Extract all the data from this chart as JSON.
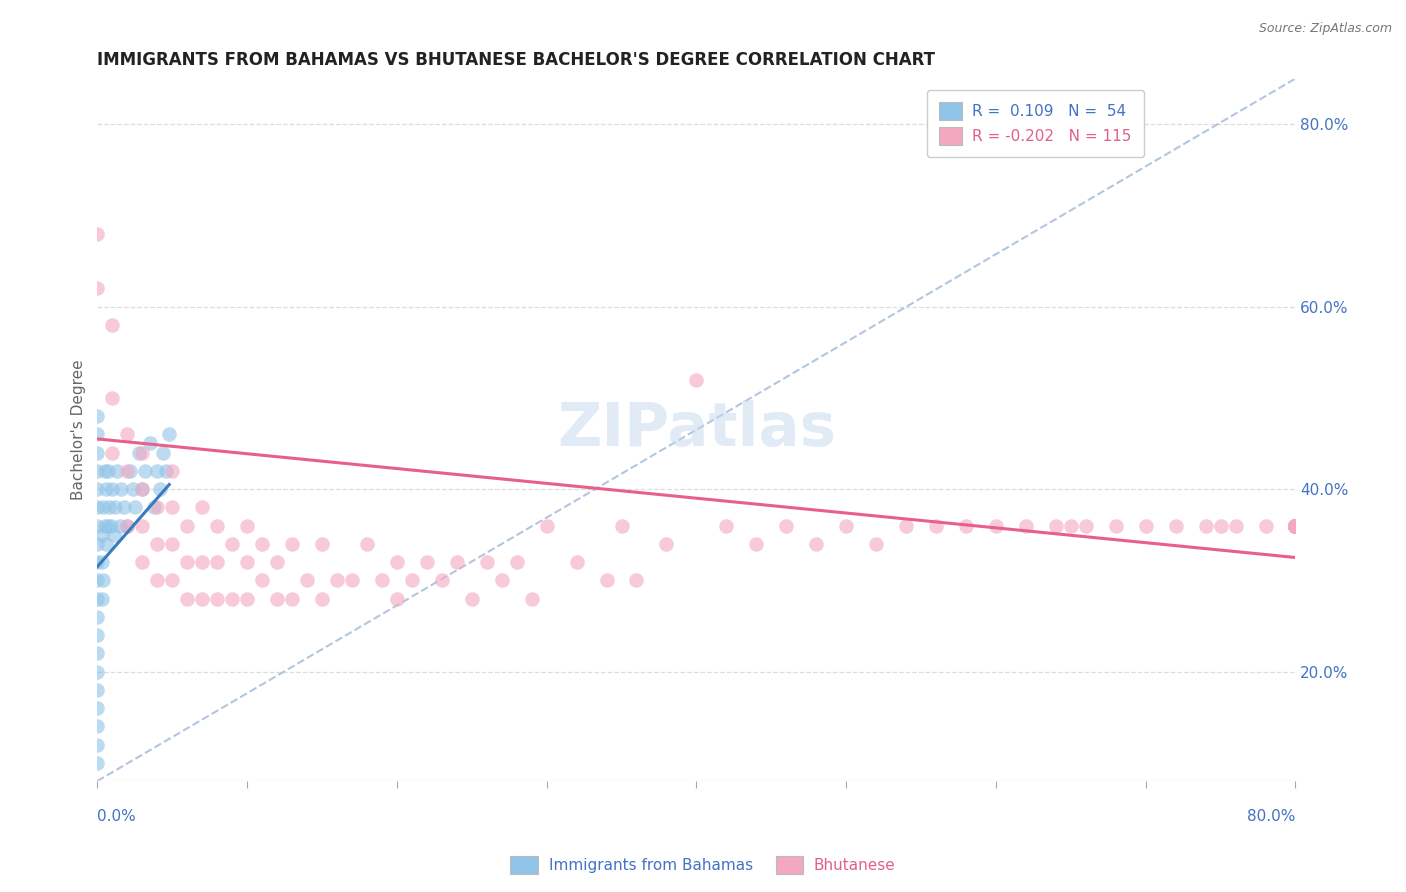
{
  "title": "IMMIGRANTS FROM BAHAMAS VS BHUTANESE BACHELOR'S DEGREE CORRELATION CHART",
  "source_text": "Source: ZipAtlas.com",
  "ylabel": "Bachelor's Degree",
  "right_yticks": [
    0.2,
    0.4,
    0.6,
    0.8
  ],
  "right_yticklabels": [
    "20.0%",
    "40.0%",
    "60.0%",
    "80.0%"
  ],
  "legend_r1": "R =  0.109   N =  54",
  "legend_r2": "R = -0.202   N = 115",
  "watermark": "ZIPatlas",
  "color_blue": "#90c4e8",
  "color_pink": "#f4a8c0",
  "color_blue_line": "#3a7abf",
  "color_pink_line": "#e8608a",
  "color_diag": "#a0b8d8",
  "xlim": [
    0.0,
    0.8
  ],
  "ylim": [
    0.08,
    0.85
  ],
  "blue_scatter_x": [
    0.0,
    0.0,
    0.0,
    0.0,
    0.0,
    0.0,
    0.0,
    0.0,
    0.0,
    0.0,
    0.0,
    0.0,
    0.0,
    0.0,
    0.0,
    0.0,
    0.0,
    0.0,
    0.0,
    0.0,
    0.003,
    0.003,
    0.003,
    0.004,
    0.004,
    0.005,
    0.005,
    0.006,
    0.006,
    0.007,
    0.007,
    0.008,
    0.009,
    0.01,
    0.011,
    0.012,
    0.013,
    0.015,
    0.016,
    0.018,
    0.02,
    0.022,
    0.024,
    0.025,
    0.028,
    0.03,
    0.032,
    0.035,
    0.038,
    0.04,
    0.042,
    0.044,
    0.046,
    0.048
  ],
  "blue_scatter_y": [
    0.1,
    0.12,
    0.14,
    0.16,
    0.18,
    0.2,
    0.22,
    0.24,
    0.26,
    0.28,
    0.3,
    0.32,
    0.34,
    0.36,
    0.38,
    0.4,
    0.42,
    0.44,
    0.46,
    0.48,
    0.28,
    0.32,
    0.35,
    0.3,
    0.38,
    0.36,
    0.42,
    0.34,
    0.4,
    0.36,
    0.42,
    0.38,
    0.36,
    0.4,
    0.35,
    0.38,
    0.42,
    0.36,
    0.4,
    0.38,
    0.36,
    0.42,
    0.4,
    0.38,
    0.44,
    0.4,
    0.42,
    0.45,
    0.38,
    0.42,
    0.4,
    0.44,
    0.42,
    0.46
  ],
  "pink_scatter_x": [
    0.0,
    0.0,
    0.01,
    0.01,
    0.01,
    0.02,
    0.02,
    0.02,
    0.03,
    0.03,
    0.03,
    0.03,
    0.04,
    0.04,
    0.04,
    0.05,
    0.05,
    0.05,
    0.05,
    0.06,
    0.06,
    0.06,
    0.07,
    0.07,
    0.07,
    0.08,
    0.08,
    0.08,
    0.09,
    0.09,
    0.1,
    0.1,
    0.1,
    0.11,
    0.11,
    0.12,
    0.12,
    0.13,
    0.13,
    0.14,
    0.15,
    0.15,
    0.16,
    0.17,
    0.18,
    0.19,
    0.2,
    0.2,
    0.21,
    0.22,
    0.23,
    0.24,
    0.25,
    0.26,
    0.27,
    0.28,
    0.29,
    0.3,
    0.32,
    0.34,
    0.35,
    0.36,
    0.38,
    0.4,
    0.42,
    0.44,
    0.46,
    0.48,
    0.5,
    0.52,
    0.54,
    0.56,
    0.58,
    0.6,
    0.62,
    0.64,
    0.65,
    0.66,
    0.68,
    0.7,
    0.72,
    0.74,
    0.75,
    0.76,
    0.78,
    0.8,
    0.8,
    0.8,
    0.8,
    0.8,
    0.8,
    0.8,
    0.8,
    0.8,
    0.8,
    0.8,
    0.8,
    0.8,
    0.8,
    0.8,
    0.8,
    0.8,
    0.8,
    0.8,
    0.8,
    0.8,
    0.8,
    0.8,
    0.8,
    0.8,
    0.8,
    0.8,
    0.8,
    0.8,
    0.8,
    0.8
  ],
  "pink_scatter_y": [
    0.62,
    0.68,
    0.44,
    0.5,
    0.58,
    0.36,
    0.42,
    0.46,
    0.32,
    0.36,
    0.4,
    0.44,
    0.3,
    0.34,
    0.38,
    0.3,
    0.34,
    0.38,
    0.42,
    0.28,
    0.32,
    0.36,
    0.28,
    0.32,
    0.38,
    0.28,
    0.32,
    0.36,
    0.28,
    0.34,
    0.28,
    0.32,
    0.36,
    0.3,
    0.34,
    0.28,
    0.32,
    0.28,
    0.34,
    0.3,
    0.28,
    0.34,
    0.3,
    0.3,
    0.34,
    0.3,
    0.28,
    0.32,
    0.3,
    0.32,
    0.3,
    0.32,
    0.28,
    0.32,
    0.3,
    0.32,
    0.28,
    0.36,
    0.32,
    0.3,
    0.36,
    0.3,
    0.34,
    0.52,
    0.36,
    0.34,
    0.36,
    0.34,
    0.36,
    0.34,
    0.36,
    0.36,
    0.36,
    0.36,
    0.36,
    0.36,
    0.36,
    0.36,
    0.36,
    0.36,
    0.36,
    0.36,
    0.36,
    0.36,
    0.36,
    0.36,
    0.36,
    0.36,
    0.36,
    0.36,
    0.36,
    0.36,
    0.36,
    0.36,
    0.36,
    0.36,
    0.36,
    0.36,
    0.36,
    0.36,
    0.36,
    0.36,
    0.36,
    0.36,
    0.36,
    0.36,
    0.36,
    0.36,
    0.36,
    0.36,
    0.36,
    0.36,
    0.36,
    0.36,
    0.36,
    0.36
  ],
  "blue_line_x": [
    0.0,
    0.048
  ],
  "blue_line_y": [
    0.315,
    0.405
  ],
  "pink_line_x": [
    0.0,
    0.8
  ],
  "pink_line_y": [
    0.455,
    0.325
  ],
  "diag_line_x": [
    0.0,
    0.8
  ],
  "diag_line_y": [
    0.08,
    0.85
  ]
}
